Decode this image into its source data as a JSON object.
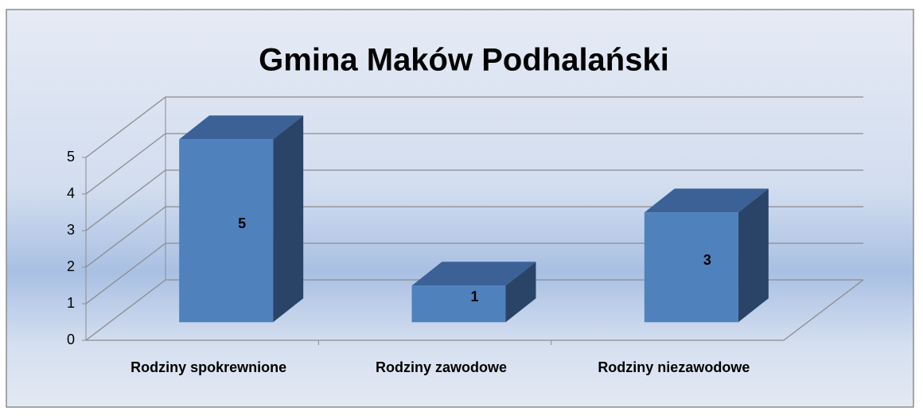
{
  "chart_data": {
    "type": "bar3d",
    "title": "Gmina Maków Podhalański",
    "categories": [
      "Rodziny spokrewnione",
      "Rodziny zawodowe",
      "Rodziny niezawodowe"
    ],
    "values": [
      5,
      1,
      3
    ],
    "color": "#4f81bd",
    "ylim": [
      0,
      5
    ],
    "yticks": [
      0,
      1,
      2,
      3,
      4,
      5
    ],
    "grid": true
  }
}
